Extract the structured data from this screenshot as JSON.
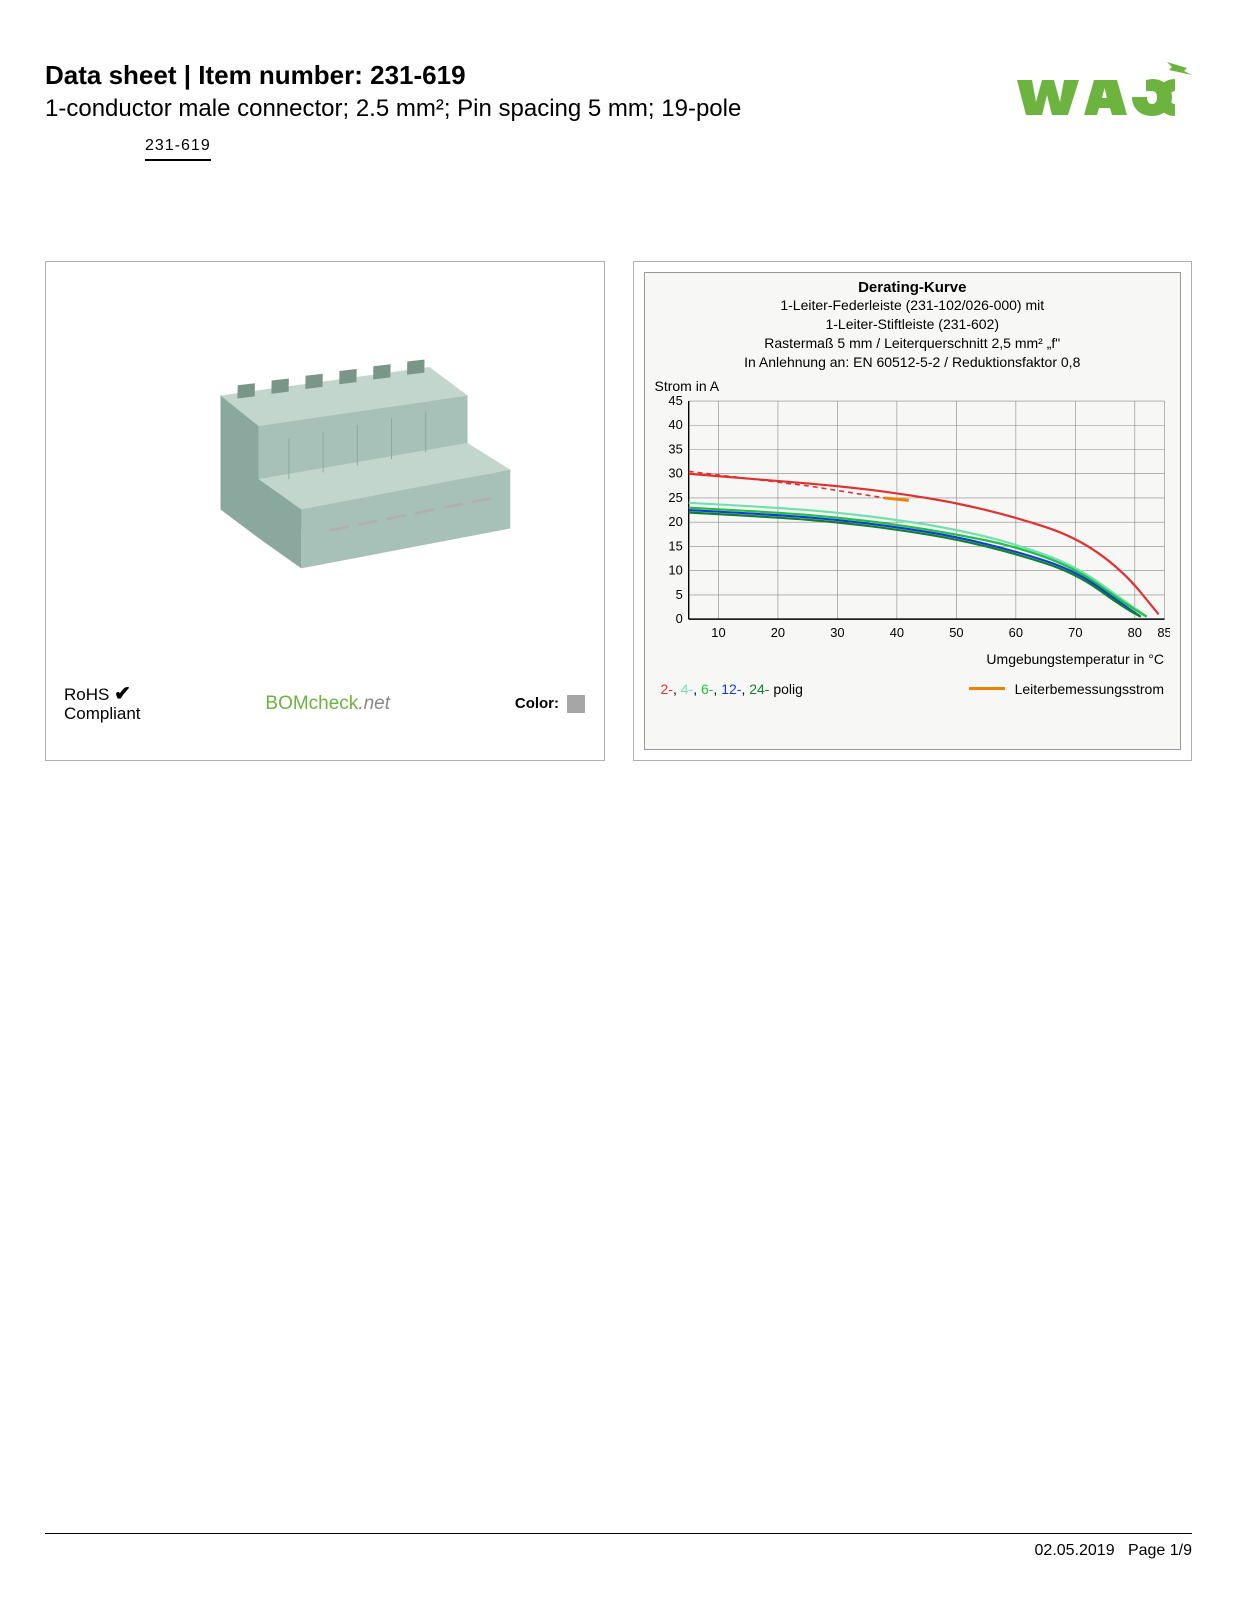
{
  "header": {
    "title_prefix": "Data sheet",
    "title_sep": "  |  ",
    "title_item": "Item number: 231-619",
    "subtitle": "1-conductor male connector; 2.5 mm²; Pin spacing 5 mm; 19-pole",
    "item_code": "231-619",
    "logo_color": "#6db33f"
  },
  "left_panel": {
    "connector_color": "#a8c1b8",
    "connector_color_dark": "#8aa89d",
    "connector_color_light": "#c2d6cd",
    "rohs_line1": "RoHS",
    "rohs_line2": "Compliant",
    "bomcheck_text": "BOMcheck",
    "bomcheck_suffix": ".net",
    "bomcheck_color": "#6db33f",
    "color_label": "Color:",
    "color_swatch": "#a6a6a6"
  },
  "chart": {
    "title": "Derating-Kurve",
    "sub1": "1-Leiter-Federleiste (231-102/026-000) mit",
    "sub2": "1-Leiter-Stiftleiste (231-602)",
    "sub3": "Rastermaß 5 mm / Leiterquerschnitt 2,5 mm² „f\"",
    "sub4": "In Anlehnung an: EN 60512-5-2 / Reduktionsfaktor 0,8",
    "y_label": "Strom in A",
    "x_label": "Umgebungstemperatur in °C",
    "background_color": "#f7f7f5",
    "grid_color": "#888888",
    "x_ticks": [
      10,
      20,
      30,
      40,
      50,
      60,
      70,
      80,
      85
    ],
    "y_ticks": [
      0,
      5,
      10,
      15,
      20,
      25,
      30,
      35,
      40,
      45
    ],
    "xlim": [
      5,
      85
    ],
    "ylim": [
      0,
      45
    ],
    "series": [
      {
        "name": "2-polig",
        "color": "#e03030",
        "data": [
          [
            5,
            30
          ],
          [
            20,
            28.5
          ],
          [
            30,
            27.5
          ],
          [
            40,
            26
          ],
          [
            50,
            24
          ],
          [
            60,
            21
          ],
          [
            70,
            17
          ],
          [
            78,
            10
          ],
          [
            84,
            1
          ]
        ]
      },
      {
        "name": "4-polig",
        "color": "#70e0b0",
        "data": [
          [
            5,
            24
          ],
          [
            20,
            23
          ],
          [
            30,
            22
          ],
          [
            40,
            20.5
          ],
          [
            50,
            18.5
          ],
          [
            60,
            15.5
          ],
          [
            70,
            11
          ],
          [
            78,
            4
          ],
          [
            82,
            0.5
          ]
        ]
      },
      {
        "name": "6-polig",
        "color": "#20c040",
        "data": [
          [
            5,
            23
          ],
          [
            20,
            22
          ],
          [
            30,
            21
          ],
          [
            40,
            19.5
          ],
          [
            50,
            17.5
          ],
          [
            60,
            15
          ],
          [
            70,
            10.5
          ],
          [
            78,
            3.5
          ],
          [
            82,
            0.5
          ]
        ]
      },
      {
        "name": "12-polig",
        "color": "#1040d0",
        "data": [
          [
            5,
            22.5
          ],
          [
            20,
            21.5
          ],
          [
            30,
            20.5
          ],
          [
            40,
            19
          ],
          [
            50,
            17
          ],
          [
            60,
            14
          ],
          [
            70,
            10
          ],
          [
            78,
            3
          ],
          [
            81,
            0.5
          ]
        ]
      },
      {
        "name": "24-polig",
        "color": "#108030",
        "data": [
          [
            5,
            22
          ],
          [
            20,
            21
          ],
          [
            30,
            20
          ],
          [
            40,
            18.5
          ],
          [
            50,
            16.5
          ],
          [
            60,
            13.5
          ],
          [
            70,
            9.5
          ],
          [
            78,
            2.5
          ],
          [
            81,
            0.5
          ]
        ]
      }
    ],
    "leiter_series": {
      "name": "Leiterbemessungsstrom",
      "color": "#f08000",
      "dashed_color": "#e03030",
      "data_dashed": [
        [
          5,
          30.5
        ],
        [
          25,
          27.5
        ],
        [
          38,
          25
        ]
      ],
      "data_solid": [
        [
          38,
          25
        ],
        [
          42,
          24.5
        ]
      ]
    },
    "legend": {
      "items": [
        {
          "label": "2-",
          "color": "#e03030"
        },
        {
          "label": "4-",
          "color": "#70e0b0"
        },
        {
          "label": "6-",
          "color": "#20c040"
        },
        {
          "label": "12-",
          "color": "#1040d0"
        },
        {
          "label": "24-",
          "color": "#108030"
        }
      ],
      "suffix": " polig",
      "right_label": "Leiterbemessungsstrom",
      "right_color": "#f08000"
    }
  },
  "footer": {
    "date": "02.05.2019",
    "page": "Page 1/9"
  }
}
